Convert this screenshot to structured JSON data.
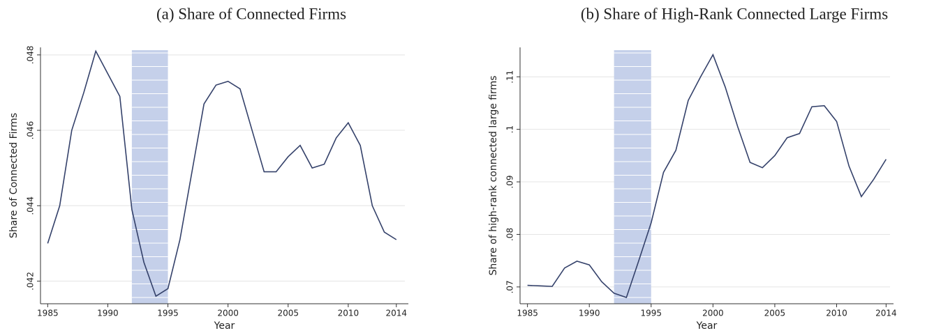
{
  "chart_data": [
    {
      "type": "line",
      "title": "(a) Share of Connected Firms",
      "xlabel": "Year",
      "ylabel": "Share of Connected Firms",
      "x": [
        1985,
        1986,
        1987,
        1988,
        1989,
        1990,
        1991,
        1992,
        1993,
        1994,
        1995,
        1996,
        1997,
        1998,
        1999,
        2000,
        2001,
        2002,
        2003,
        2004,
        2005,
        2006,
        2007,
        2008,
        2009,
        2010,
        2011,
        2012,
        2013,
        2014
      ],
      "series": [
        {
          "color": "#34416a",
          "values": [
            0.043,
            0.044,
            0.046,
            0.047,
            0.0481,
            0.0475,
            0.0469,
            0.0439,
            0.0425,
            0.0416,
            0.0418,
            0.0431,
            0.0449,
            0.0467,
            0.0472,
            0.0473,
            0.0471,
            0.046,
            0.0449,
            0.0449,
            0.0453,
            0.0456,
            0.045,
            0.0451,
            0.0458,
            0.0462,
            0.0456,
            0.044,
            0.0433,
            0.0431
          ]
        }
      ],
      "xlim": [
        1984.4,
        2015
      ],
      "xticks": [
        1985,
        1990,
        1995,
        2000,
        2005,
        2010,
        2014
      ],
      "ylim": [
        0.0414,
        0.0482
      ],
      "yticks": [
        {
          "value": 0.042,
          "label": ".042"
        },
        {
          "value": 0.044,
          "label": ".044"
        },
        {
          "value": 0.046,
          "label": ".046"
        },
        {
          "value": 0.048,
          "label": ".048"
        }
      ],
      "shade": [
        1992,
        1995
      ],
      "shade_color": "#c5d0ea",
      "grid": true
    },
    {
      "type": "line",
      "title": "(b) Share of High-Rank Connected Large Firms",
      "xlabel": "Year",
      "ylabel": "Share of high-rank connected large firms",
      "x": [
        1985,
        1986,
        1987,
        1988,
        1989,
        1990,
        1991,
        1992,
        1993,
        1994,
        1995,
        1996,
        1997,
        1998,
        1999,
        2000,
        2001,
        2002,
        2003,
        2004,
        2005,
        2006,
        2007,
        2008,
        2009,
        2010,
        2011,
        2012,
        2013,
        2014
      ],
      "series": [
        {
          "color": "#34416a",
          "values": [
            0.0703,
            0.0702,
            0.0701,
            0.0736,
            0.0749,
            0.0742,
            0.071,
            0.0688,
            0.068,
            0.075,
            0.0822,
            0.0918,
            0.096,
            0.1055,
            0.11,
            0.1142,
            0.108,
            0.1005,
            0.0937,
            0.0927,
            0.095,
            0.0984,
            0.0992,
            0.1043,
            0.1045,
            0.1015,
            0.093,
            0.0872,
            0.0905,
            0.0943
          ]
        }
      ],
      "xlim": [
        1984.4,
        2014.6
      ],
      "xticks": [
        1985,
        1990,
        1995,
        2000,
        2005,
        2010,
        2014
      ],
      "ylim": [
        0.0668,
        0.1156
      ],
      "yticks": [
        {
          "value": 0.07,
          "label": ".07"
        },
        {
          "value": 0.08,
          "label": ".08"
        },
        {
          "value": 0.09,
          "label": ".09"
        },
        {
          "value": 0.1,
          "label": ".1"
        },
        {
          "value": 0.11,
          "label": ".11"
        }
      ],
      "shade": [
        1992,
        1995
      ],
      "shade_color": "#c5d0ea",
      "grid": true
    }
  ]
}
